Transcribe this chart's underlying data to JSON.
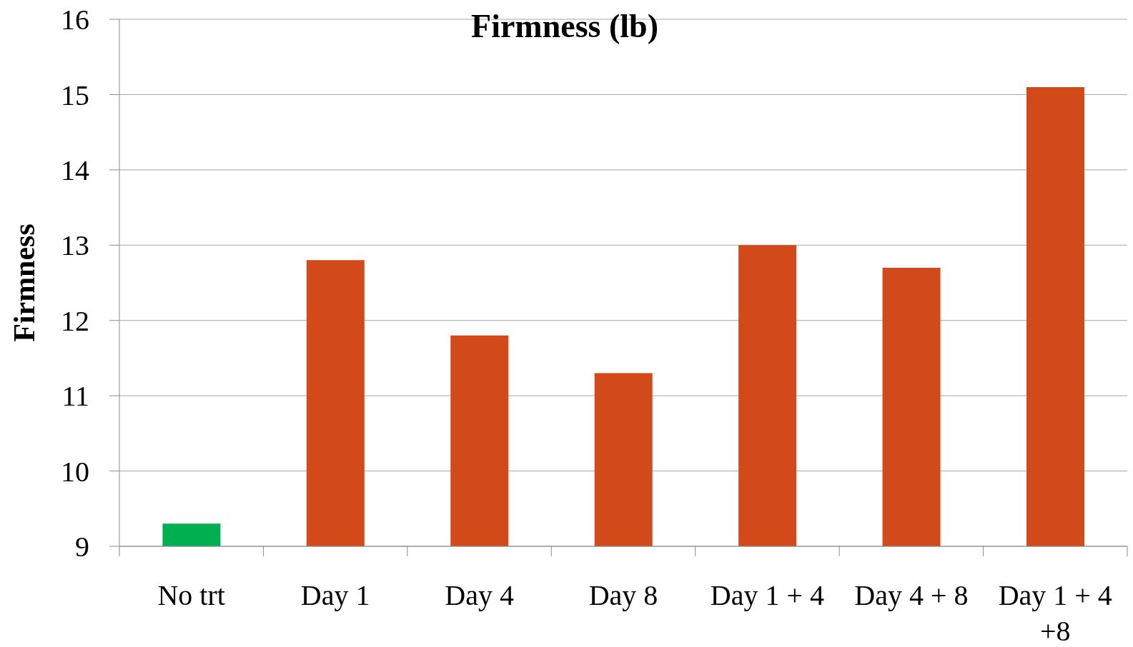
{
  "chart_data": {
    "type": "bar",
    "title": "Firmness (lb)",
    "ylabel": "Firmness",
    "categories": [
      "No trt",
      "Day 1",
      "Day 4",
      "Day 8",
      "Day 1 + 4",
      "Day 4 + 8",
      "Day 1 + 4 +8"
    ],
    "values": [
      9.3,
      12.8,
      11.8,
      11.3,
      13.0,
      12.7,
      15.1
    ],
    "colors": [
      "#00b050",
      "#d24a19",
      "#d24a19",
      "#d24a19",
      "#d24a19",
      "#d24a19",
      "#d24a19"
    ],
    "ylim": [
      9,
      16
    ],
    "yticks": [
      9,
      10,
      11,
      12,
      13,
      14,
      15,
      16
    ],
    "grid": "y"
  }
}
